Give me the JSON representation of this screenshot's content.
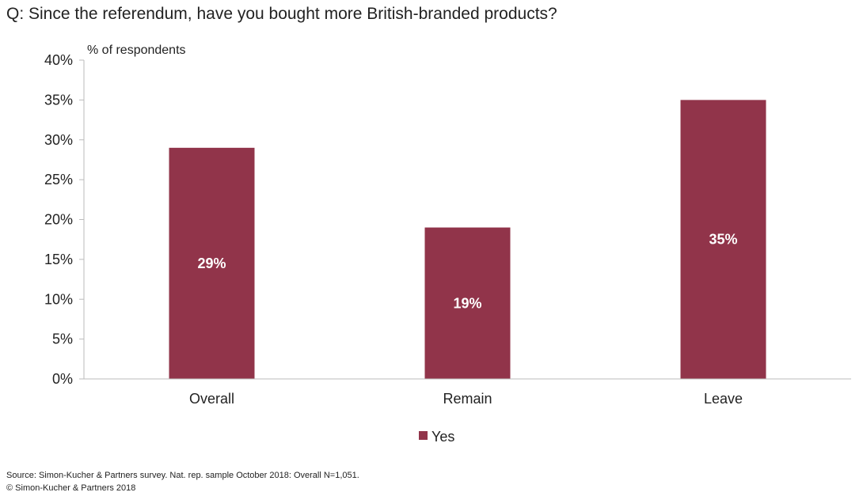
{
  "chart_data": {
    "type": "bar",
    "title": "Q: Since the referendum, have you bought more British-branded products?",
    "ylabel": "% of respondents",
    "xlabel": "",
    "categories": [
      "Overall",
      "Remain",
      "Leave"
    ],
    "series": [
      {
        "name": "Yes",
        "values": [
          29,
          19,
          35
        ],
        "data_labels": [
          "29%",
          "19%",
          "35%"
        ],
        "color": "#91344A"
      }
    ],
    "ylim": [
      0,
      40
    ],
    "yticks": [
      0,
      5,
      10,
      15,
      20,
      25,
      30,
      35,
      40
    ],
    "ytick_labels": [
      "0%",
      "5%",
      "10%",
      "15%",
      "20%",
      "25%",
      "30%",
      "35%",
      "40%"
    ],
    "grid": false,
    "legend": "bottom-center"
  },
  "footer": {
    "source": "Source: Simon-Kucher & Partners survey. Nat. rep. sample October 2018: Overall N=1,051.",
    "copyright": "© Simon-Kucher & Partners 2018"
  },
  "colors": {
    "bar": "#91344A",
    "axis": "#bbbbbb",
    "text": "#222222"
  }
}
